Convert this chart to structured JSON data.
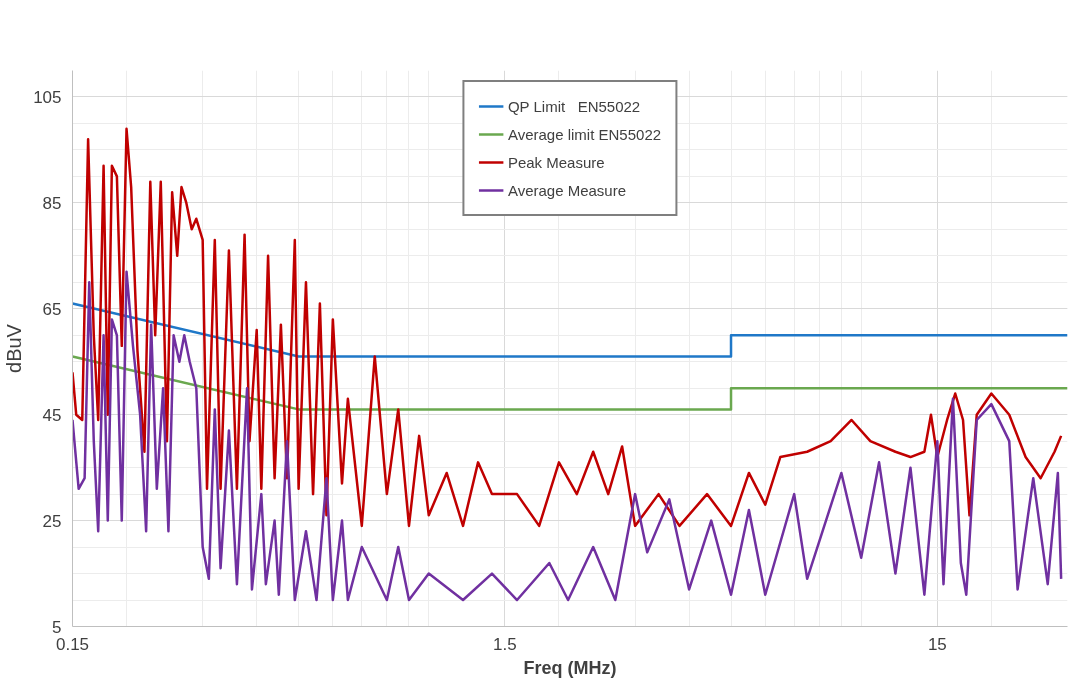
{
  "chart_data": {
    "type": "line",
    "xlabel": "Freq (MHz)",
    "ylabel": "dBuV",
    "log": "x",
    "xlim": [
      0.15,
      30
    ],
    "xticks": [
      0.15,
      1.5,
      15
    ],
    "ylim": [
      5,
      110
    ],
    "yticks": [
      5,
      25,
      45,
      65,
      85,
      105
    ],
    "grid": true,
    "legend": "top",
    "line_style": "solid",
    "marker": "none",
    "series": [
      {
        "name": "QP Limit   EN55022",
        "color": "#1f78c8",
        "x": [
          0.15,
          0.5,
          5,
          5,
          30
        ],
        "values": [
          66,
          56,
          56,
          60,
          60
        ]
      },
      {
        "name": "Average limit EN55022",
        "color": "#6aa84f",
        "x": [
          0.15,
          0.5,
          5,
          5,
          30
        ],
        "values": [
          56,
          46,
          46,
          50,
          50
        ]
      },
      {
        "name": "Peak Measure",
        "color": "#c00000",
        "x": [
          0.15,
          0.153,
          0.158,
          0.163,
          0.168,
          0.172,
          0.177,
          0.181,
          0.185,
          0.19,
          0.195,
          0.2,
          0.205,
          0.212,
          0.22,
          0.227,
          0.233,
          0.24,
          0.248,
          0.255,
          0.262,
          0.268,
          0.275,
          0.283,
          0.29,
          0.3,
          0.307,
          0.32,
          0.33,
          0.345,
          0.36,
          0.375,
          0.385,
          0.4,
          0.41,
          0.425,
          0.44,
          0.455,
          0.47,
          0.49,
          0.5,
          0.52,
          0.54,
          0.56,
          0.58,
          0.6,
          0.63,
          0.65,
          0.7,
          0.75,
          0.8,
          0.85,
          0.9,
          0.95,
          1.0,
          1.1,
          1.2,
          1.3,
          1.4,
          1.6,
          1.8,
          2.0,
          2.2,
          2.4,
          2.6,
          2.8,
          3.0,
          3.4,
          3.8,
          4.4,
          5.0,
          5.5,
          6.0,
          6.5,
          7.5,
          8.5,
          9.5,
          10.5,
          12,
          13,
          14,
          14.5,
          15,
          15.8,
          16.5,
          17.2,
          17.8,
          18.5,
          20,
          22,
          24,
          26,
          28,
          29
        ],
        "values": [
          53,
          45,
          44,
          97,
          60,
          44,
          92,
          45,
          92,
          90,
          58,
          99,
          88,
          57,
          38,
          89,
          60,
          89,
          40,
          87,
          75,
          88,
          85,
          80,
          82,
          78,
          31,
          78,
          31,
          76,
          31,
          79,
          40,
          61,
          31,
          75,
          33,
          62,
          33,
          78,
          31,
          70,
          30,
          66,
          26,
          63,
          32,
          48,
          24,
          56,
          30,
          46,
          24,
          41,
          26,
          34,
          24,
          36,
          30,
          30,
          24,
          36,
          30,
          38,
          30,
          39,
          24,
          30,
          24,
          30,
          24,
          34,
          28,
          37,
          38,
          40,
          44,
          40,
          38,
          37,
          38,
          45,
          37,
          44,
          49,
          44,
          26,
          45,
          49,
          45,
          37,
          33,
          38,
          41
        ]
      },
      {
        "name": "Average Measure",
        "color": "#7030a0",
        "x": [
          0.15,
          0.155,
          0.16,
          0.164,
          0.168,
          0.172,
          0.177,
          0.181,
          0.185,
          0.19,
          0.195,
          0.2,
          0.207,
          0.215,
          0.222,
          0.228,
          0.235,
          0.243,
          0.25,
          0.257,
          0.265,
          0.272,
          0.28,
          0.29,
          0.3,
          0.31,
          0.32,
          0.33,
          0.345,
          0.36,
          0.38,
          0.39,
          0.41,
          0.42,
          0.44,
          0.45,
          0.47,
          0.49,
          0.52,
          0.55,
          0.58,
          0.6,
          0.63,
          0.65,
          0.7,
          0.8,
          0.85,
          0.9,
          1.0,
          1.2,
          1.4,
          1.6,
          1.9,
          2.1,
          2.4,
          2.7,
          3.0,
          3.2,
          3.6,
          4.0,
          4.5,
          5.0,
          5.5,
          6.0,
          7,
          7.5,
          9,
          10,
          11,
          12,
          13,
          14,
          15,
          15.5,
          16.3,
          17,
          17.5,
          18.5,
          20,
          22,
          23,
          25,
          27,
          28.5,
          29
        ],
        "values": [
          44,
          31,
          33,
          70,
          40,
          23,
          60,
          25,
          63,
          60,
          25,
          72,
          58,
          45,
          23,
          62,
          31,
          50,
          23,
          60,
          55,
          60,
          55,
          50,
          20,
          14,
          46,
          16,
          42,
          13,
          50,
          12,
          30,
          13,
          25,
          11,
          40,
          10,
          23,
          10,
          33,
          10,
          25,
          10,
          20,
          10,
          20,
          10,
          15,
          10,
          15,
          10,
          17,
          10,
          20,
          10,
          30,
          19,
          29,
          12,
          25,
          11,
          27,
          11,
          30,
          14,
          34,
          18,
          36,
          15,
          35,
          11,
          40,
          13,
          48,
          17,
          11,
          44,
          47,
          40,
          12,
          33,
          13,
          34,
          14
        ]
      }
    ]
  }
}
